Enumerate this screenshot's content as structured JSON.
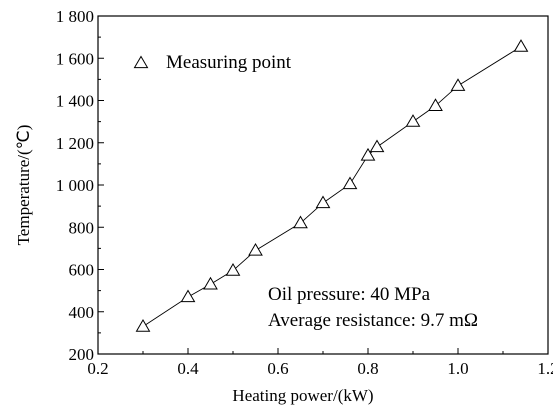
{
  "chart_data": {
    "type": "line",
    "xlabel": "Heating power/(kW)",
    "ylabel": "Temperature/(℃)",
    "xlim": [
      0.2,
      1.2
    ],
    "ylim": [
      200,
      1800
    ],
    "x_ticks": [
      "0.2",
      "0.4",
      "0.6",
      "0.8",
      "1.0",
      "1.2"
    ],
    "y_ticks": [
      "200",
      "400",
      "600",
      "800",
      "1 000",
      "1 200",
      "1 400",
      "1 600",
      "1 800"
    ],
    "grid": false,
    "legend": {
      "position": "top-left",
      "entries": [
        "Measuring point"
      ]
    },
    "series": [
      {
        "name": "Measuring point",
        "marker": "open-triangle",
        "x": [
          0.3,
          0.4,
          0.45,
          0.5,
          0.55,
          0.65,
          0.7,
          0.76,
          0.8,
          0.82,
          0.9,
          0.95,
          1.0,
          1.14
        ],
        "y": [
          330,
          470,
          530,
          595,
          690,
          820,
          915,
          1005,
          1140,
          1180,
          1300,
          1375,
          1470,
          1655
        ]
      }
    ],
    "annotations": [
      "Oil pressure: 40 MPa",
      "Average resistance: 9.7 mΩ"
    ],
    "colors": {
      "line": "#000000",
      "marker_fill": "#ffffff",
      "axes": "#000000"
    }
  }
}
